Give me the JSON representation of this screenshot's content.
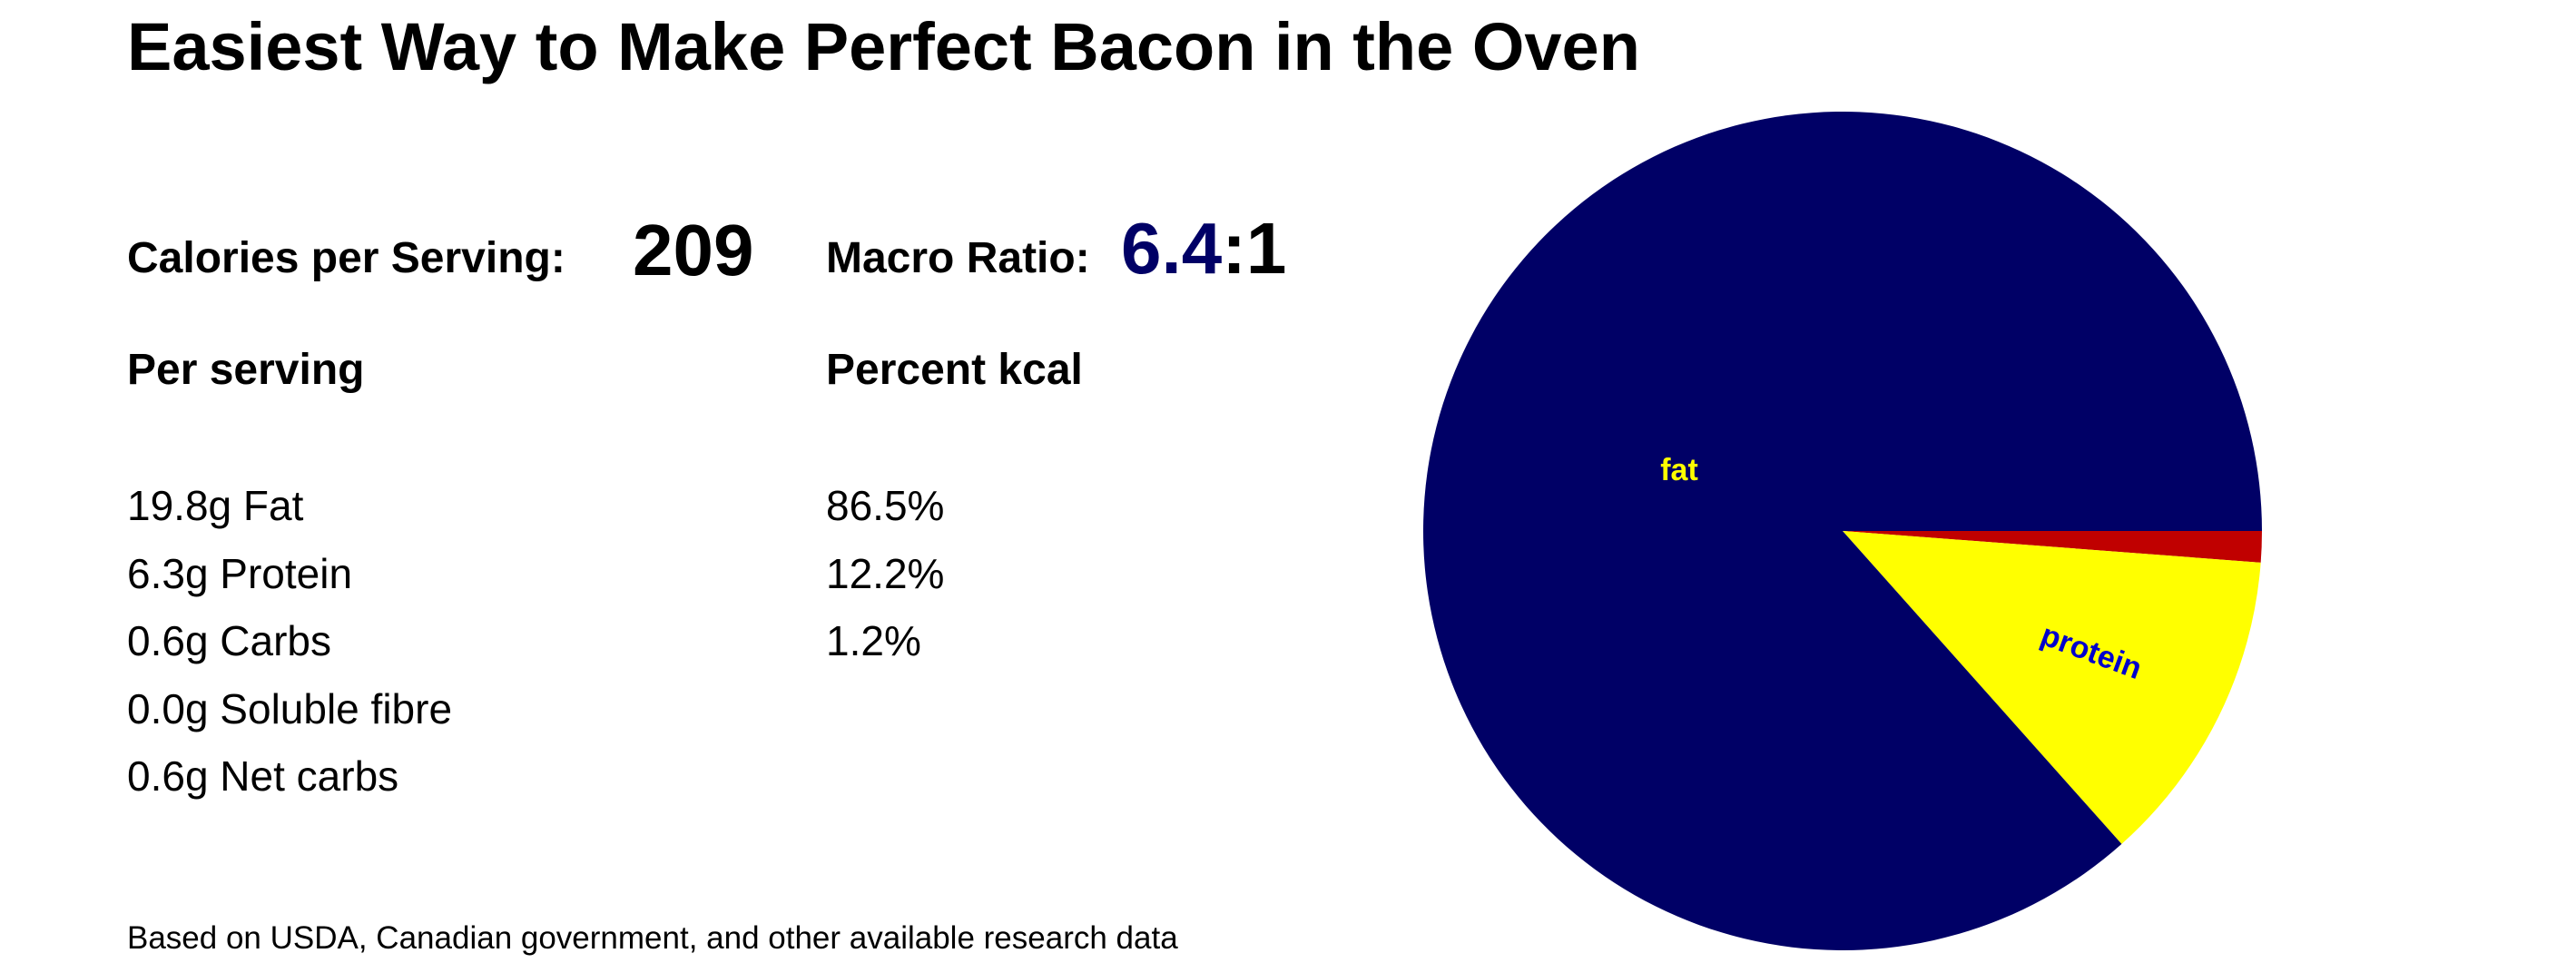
{
  "title": "Easiest Way to Make Perfect Bacon in the Oven",
  "calories": {
    "label": "Calories per Serving:",
    "value": "209"
  },
  "macro_ratio": {
    "label": "Macro Ratio:",
    "value": "6.4",
    "suffix": ":1"
  },
  "headers": {
    "per_serving": "Per serving",
    "percent_kcal": "Percent kcal"
  },
  "nutrients": [
    "19.8g Fat",
    "6.3g Protein",
    "0.6g Carbs",
    "0.0g Soluble fibre",
    "0.6g Net carbs"
  ],
  "percents": [
    "86.5%",
    "12.2%",
    "1.2%"
  ],
  "source_note": "Based on USDA, Canadian government, and other available research data",
  "colors": {
    "fat": "#000066",
    "protein": "#ffff00",
    "carbs": "#c00000",
    "fat_label": "#ffff00",
    "protein_label": "#0000cc"
  },
  "chart_data": {
    "type": "pie",
    "slices": [
      {
        "label": "fat",
        "value": 86.5,
        "color": "#000066",
        "label_color": "#ffff00"
      },
      {
        "label": "protein",
        "value": 12.2,
        "color": "#ffff00",
        "label_color": "#0000cc"
      },
      {
        "label": "",
        "value": 1.2,
        "color": "#c00000",
        "label_color": "#000000"
      }
    ],
    "start": "3 o'clock",
    "direction": "counterclockwise"
  }
}
